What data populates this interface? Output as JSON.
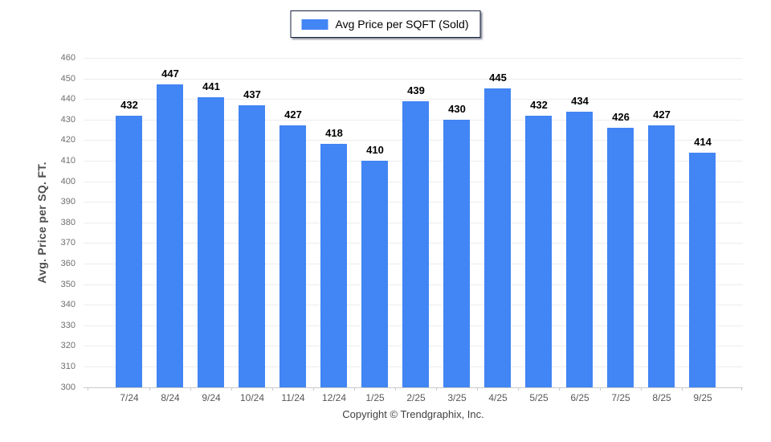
{
  "legend": {
    "label": "Avg Price per SQFT (Sold)"
  },
  "y_axis": {
    "title": "Avg. Price per SQ. FT."
  },
  "footer": {
    "copyright": "Copyright © Trendgraphix, Inc."
  },
  "colors": {
    "bar": "#4285f4",
    "grid": "#ececec",
    "baseline": "#c9c9c9",
    "y_tick_text": "#6e6e6e",
    "x_tick_text": "#585858",
    "value_label": "#000000",
    "legend_border": "#16213e"
  },
  "chart_data": {
    "type": "bar",
    "title": "Avg Price per SQFT (Sold)",
    "categories": [
      "7/24",
      "8/24",
      "9/24",
      "10/24",
      "11/24",
      "12/24",
      "1/25",
      "2/25",
      "3/25",
      "4/25",
      "5/25",
      "6/25",
      "7/25",
      "8/25",
      "9/25"
    ],
    "values": [
      432,
      447,
      441,
      437,
      427,
      418,
      410,
      439,
      430,
      445,
      432,
      434,
      426,
      427,
      414
    ],
    "xlabel": "",
    "ylabel": "Avg. Price per SQ. FT.",
    "ylim": [
      300,
      460
    ],
    "ytick_step": 10,
    "grid": true,
    "legend_position": "top",
    "value_labels": true
  }
}
